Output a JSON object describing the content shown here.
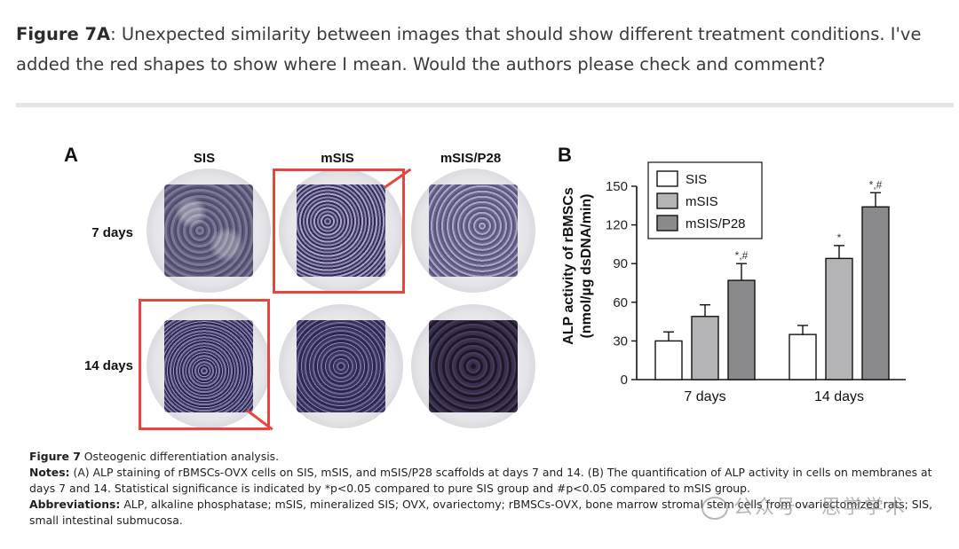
{
  "comment": {
    "label": "Figure 7A",
    "text": ": Unexpected similarity between images that should show different treatment conditions. I've added the red shapes to show where I mean. Would the authors please check and comment?"
  },
  "panel_a": {
    "letter": "A",
    "columns": [
      "SIS",
      "mSIS",
      "mSIS/P28"
    ],
    "rows": [
      "7 days",
      "14 days"
    ]
  },
  "panel_b": {
    "letter": "B"
  },
  "chart_data": {
    "type": "bar",
    "categories": [
      "7 days",
      "14 days"
    ],
    "series": [
      {
        "name": "SIS",
        "color": "#ffffff",
        "values": [
          30,
          35
        ],
        "errors": [
          7,
          7
        ],
        "annotations": [
          "",
          ""
        ]
      },
      {
        "name": "mSIS",
        "color": "#b4b4b6",
        "values": [
          49,
          94
        ],
        "errors": [
          9,
          10
        ],
        "annotations": [
          "",
          "*"
        ]
      },
      {
        "name": "mSIS/P28",
        "color": "#8a8a8c",
        "values": [
          77,
          134
        ],
        "errors": [
          13,
          11
        ],
        "annotations": [
          "*,#",
          "*,#"
        ]
      }
    ],
    "ylabel_line1": "ALP activity of rBMSCs",
    "ylabel_line2": "(nmol/µg dsDNA/min)",
    "ylim": [
      0,
      150
    ],
    "yticks": [
      0,
      30,
      60,
      90,
      120,
      150
    ],
    "legend": "top-left"
  },
  "caption": {
    "fig_label": "Figure 7",
    "fig_title": " Osteogenic differentiation analysis.",
    "notes_label": "Notes:",
    "notes_text": " (A) ALP staining of rBMSCs-OVX cells on SIS, mSIS, and mSIS/P28 scaffolds at days 7 and 14. (B) The quantification of ALP activity in cells on membranes at days 7 and 14. Statistical significance is indicated by *p<0.05 compared to pure SIS group and #p<0.05 compared to mSIS group.",
    "abbr_label": "Abbreviations:",
    "abbr_text": " ALP, alkaline phosphatase; mSIS, mineralized SIS; OVX, ovariectomy; rBMSCs-OVX, bone marrow stromal stem cells from ovariectomized rats; SIS, small intestinal submucosa."
  },
  "watermark": "公众号 · 思学学术"
}
